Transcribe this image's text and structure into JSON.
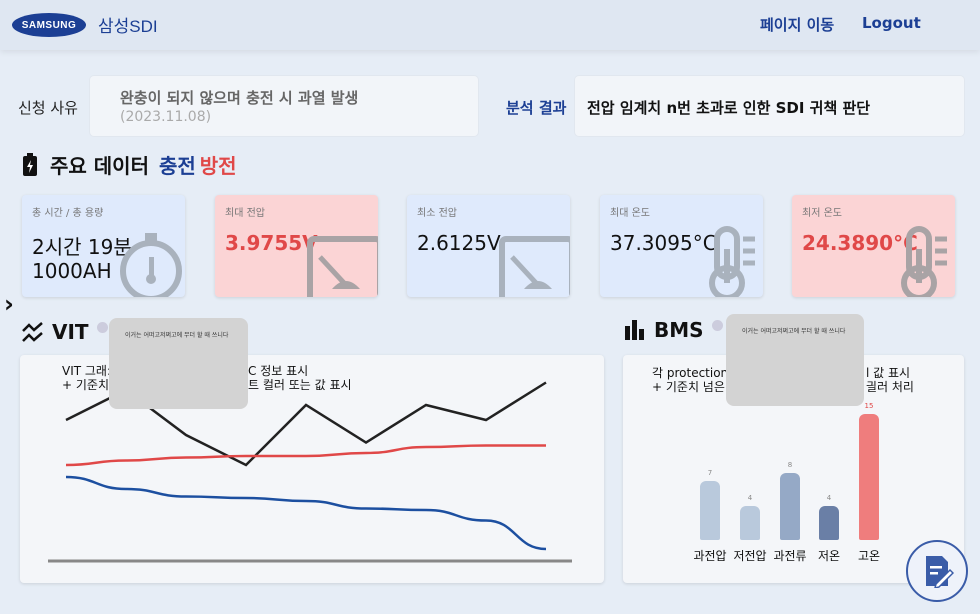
{
  "header": {
    "logo_mark": "SAMSUNG",
    "logo_text": "삼성SDI",
    "nav_page": "페이지 이동",
    "nav_logout": "Logout"
  },
  "request": {
    "label": "신청 사유",
    "reason": "완충이 되지 않으며 충전 시 과열 발생",
    "date": "(2023.11.08)"
  },
  "result": {
    "label": "분석 결과",
    "text": "전압 임계치 n번 초과로 인한 SDI 귀책 판단"
  },
  "main_data": {
    "title": "주요 데이터",
    "charge": "충전",
    "discharge": "방전"
  },
  "cards": [
    {
      "key": "총 시간 / 총 용량",
      "value": "2시간 19분",
      "value2": "1000AH",
      "color": "#dfeafc",
      "icon": "stopwatch-icon"
    },
    {
      "key": "최대 전압",
      "value": "3.9755V",
      "color": "#fbd4d5",
      "icon": "voltmeter-icon"
    },
    {
      "key": "최소 전압",
      "value": "2.6125V",
      "color": "#dfeafc",
      "icon": "voltmeter-icon"
    },
    {
      "key": "최대 온도",
      "value": "37.3095°C",
      "color": "#dfeafc",
      "icon": "thermometer-icon"
    },
    {
      "key": "최저 온도",
      "value": "24.3890°C",
      "color": "#fbd4d5",
      "icon": "thermometer-icon"
    }
  ],
  "vit": {
    "title": "VIT",
    "desc_line1": "VIT 그래:",
    "desc_line1b": "C 정보 표시",
    "desc_line2": "+ 기준치",
    "desc_line2b": "트 컬러 또는 값 표시",
    "tooltip": "이거는 어떠고저쩌고에 무더 할 때 쓰니다"
  },
  "bms": {
    "title": "BMS",
    "desc_line1": "각 protection",
    "desc_line1b": "l 값 표시",
    "desc_line2": "+ 기준치 넘은",
    "desc_line2b": "긜러 처리",
    "tooltip": "이거는 어떠고저쩌고에 무더 할 때 쓰니다"
  },
  "chart_data": [
    {
      "type": "line",
      "x": [
        0,
        1,
        2,
        3,
        4,
        5,
        6,
        7,
        8
      ],
      "series": [
        {
          "values": [
            8,
            10,
            7,
            5,
            9,
            6.5,
            9,
            8,
            10.5
          ],
          "color": "#222222"
        },
        {
          "values": [
            5,
            5.3,
            5.5,
            5.6,
            5.6,
            5.8,
            6.2,
            6.3,
            6.3
          ],
          "color": "#e04848"
        },
        {
          "values": [
            4.2,
            3.4,
            2.9,
            2.8,
            2.6,
            2.1,
            2.0,
            1.3,
            -0.6
          ],
          "color": "#1c4fa0"
        }
      ]
    },
    {
      "type": "bar",
      "categories": [
        "과전압",
        "저전압",
        "과전류",
        "저온",
        "고온"
      ],
      "values": [
        7,
        4,
        8,
        4,
        15
      ],
      "colors": [
        "#b9c9dc",
        "#b9c9dc",
        "#95a9c6",
        "#6a7fa6",
        "#ef7d7d"
      ]
    }
  ]
}
